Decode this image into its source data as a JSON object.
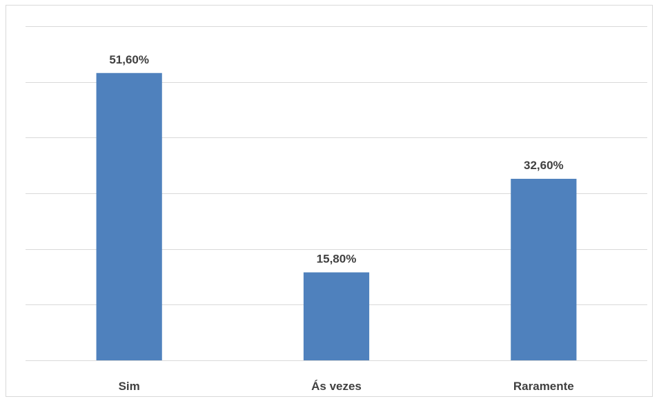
{
  "chart_data": {
    "type": "bar",
    "categories": [
      "Sim",
      "Ás vezes",
      "Raramente"
    ],
    "values": [
      51.6,
      15.8,
      32.6
    ],
    "data_labels": [
      "51,60%",
      "15,80%",
      "32,60%"
    ],
    "title": "",
    "xlabel": "",
    "ylabel": "",
    "ylim": [
      0,
      60
    ],
    "y_axis_labels_visible": false,
    "grid": true,
    "legend": "none",
    "bar_color": "#4f81bd",
    "grid_color": "#d9d9d9",
    "label_color": "#404040"
  }
}
